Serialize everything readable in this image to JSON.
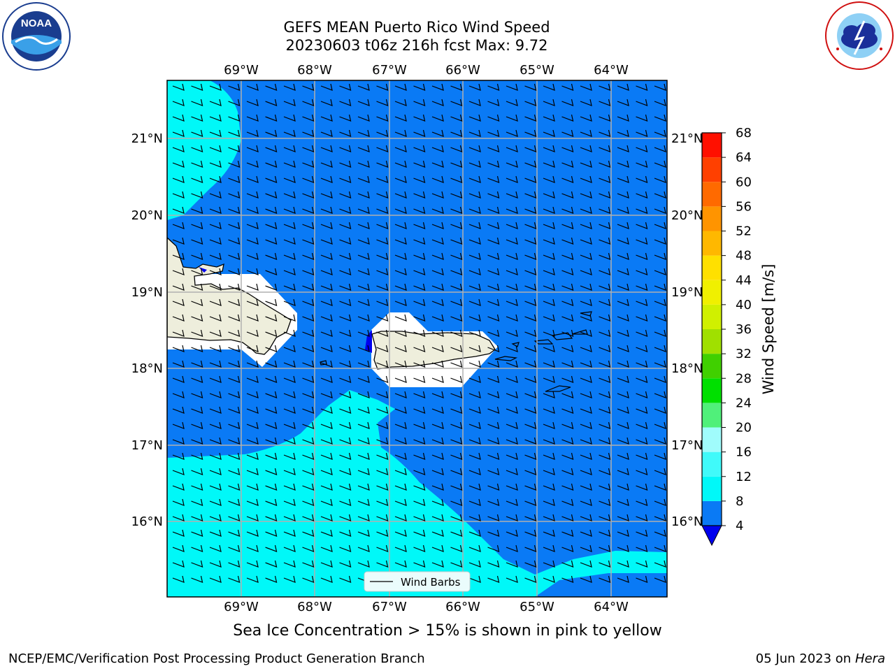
{
  "header": {
    "title_line1": "GEFS MEAN Puerto Rico Wind Speed",
    "title_line2": "20230603 t06z 216h fcst   Max: 9.72"
  },
  "map": {
    "lon_labels": [
      "69°W",
      "68°W",
      "67°W",
      "66°W",
      "65°W",
      "64°W"
    ],
    "lat_labels": [
      "21°N",
      "20°N",
      "19°N",
      "18°N",
      "17°N",
      "16°N"
    ],
    "legend_label": "Wind Barbs",
    "colors": {
      "ocean_4_8": "#0a7af5",
      "ocean_8_12": "#00f8f8",
      "land": "#eeeedc",
      "below_min": "#0000ee",
      "grid": "#b0b0b0"
    }
  },
  "colorbar": {
    "label": "Wind Speed [m/s]",
    "ticks": [
      "4",
      "8",
      "12",
      "16",
      "20",
      "24",
      "28",
      "32",
      "36",
      "40",
      "44",
      "48",
      "52",
      "56",
      "60",
      "64",
      "68"
    ],
    "colors": [
      "#0a7af5",
      "#00f8f8",
      "#40fafa",
      "#a0fcfc",
      "#50f07a",
      "#00e000",
      "#40d000",
      "#a0e000",
      "#d0f000",
      "#f0f000",
      "#ffe000",
      "#ffb800",
      "#ff9400",
      "#ff6a00",
      "#ff4000",
      "#ff1000"
    ],
    "extend_color": "#0000ee"
  },
  "footer": {
    "note": "Sea Ice Concentration > 15% is shown in pink to yellow",
    "left": "NCEP/EMC/Verification Post Processing Product Generation Branch",
    "right_date": "05 Jun 2023 on",
    "right_host": "Hera"
  },
  "logos": {
    "noaa": "NOAA",
    "nws": "NATIONAL WEATHER SERVICE"
  }
}
